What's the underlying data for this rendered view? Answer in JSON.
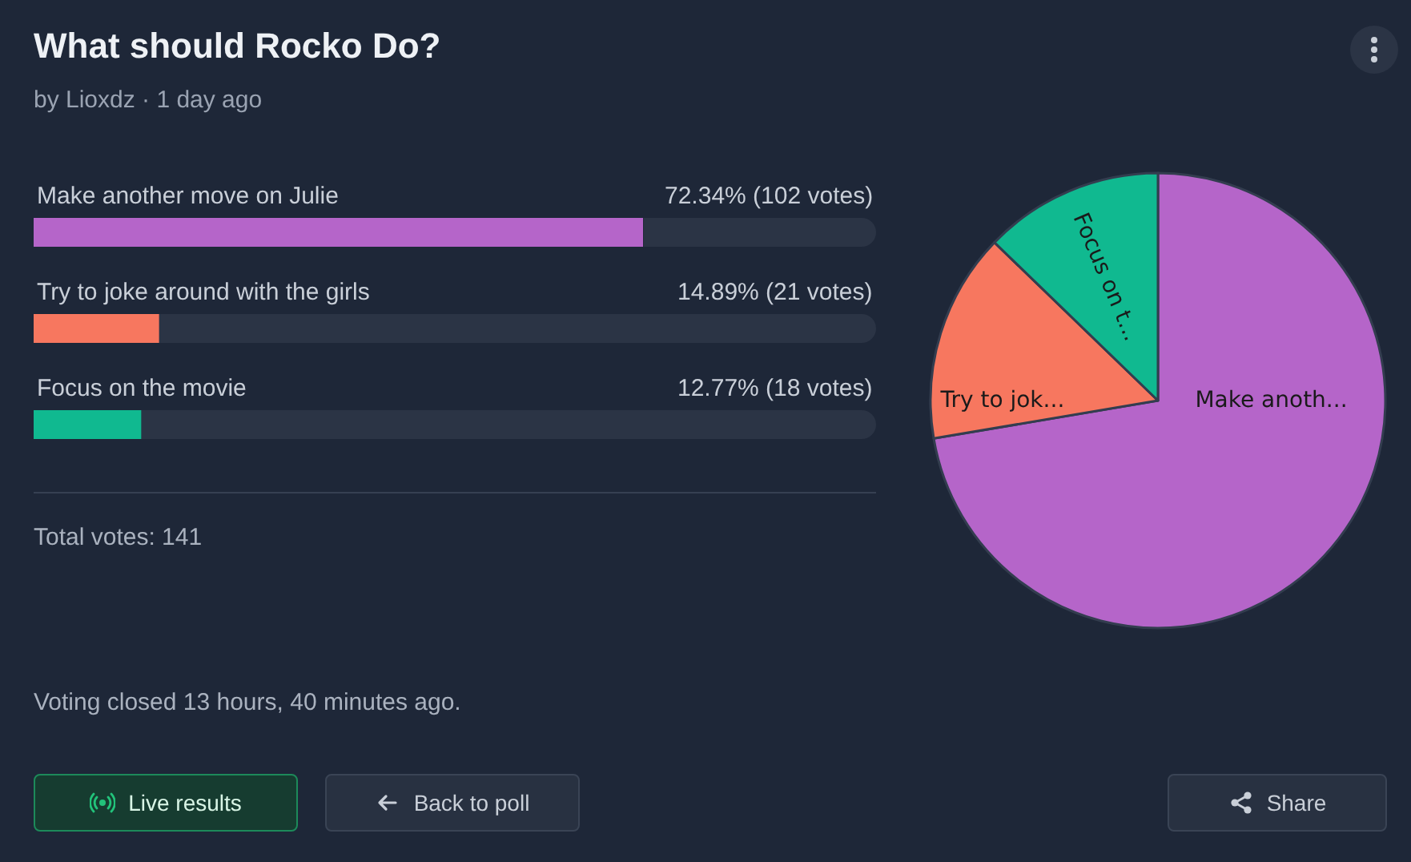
{
  "chart_data": [
    {
      "type": "bar",
      "orientation": "horizontal",
      "title": "What should Rocko Do?",
      "subtitle": "by Lioxdz · 1 day ago",
      "categories": [
        "Make another move on Julie",
        "Try to joke around with the girls",
        "Focus on the movie"
      ],
      "values": [
        72.34,
        14.89,
        12.77
      ],
      "colors": [
        "#b565c9",
        "#f7775f",
        "#10b990"
      ],
      "value_labels": [
        "72.34% (102 votes)",
        "14.89% (21 votes)",
        "12.77% (18 votes)"
      ],
      "xlim": [
        0,
        100
      ],
      "grid": false,
      "legend": false,
      "annotations": [
        "Total votes: 141",
        "Voting closed 13 hours, 40 minutes ago.",
        "Live results",
        "Back to poll",
        "Share"
      ]
    },
    {
      "type": "pie",
      "categories": [
        null,
        null,
        null
      ],
      "values": [
        72.34,
        14.89,
        12.77
      ],
      "colors": [
        "#b565c9",
        "#f7775f",
        "#10b990"
      ],
      "value_labels": [
        "Make anoth...",
        "Try to jok...",
        "Focus on t..."
      ],
      "legend": false
    }
  ]
}
